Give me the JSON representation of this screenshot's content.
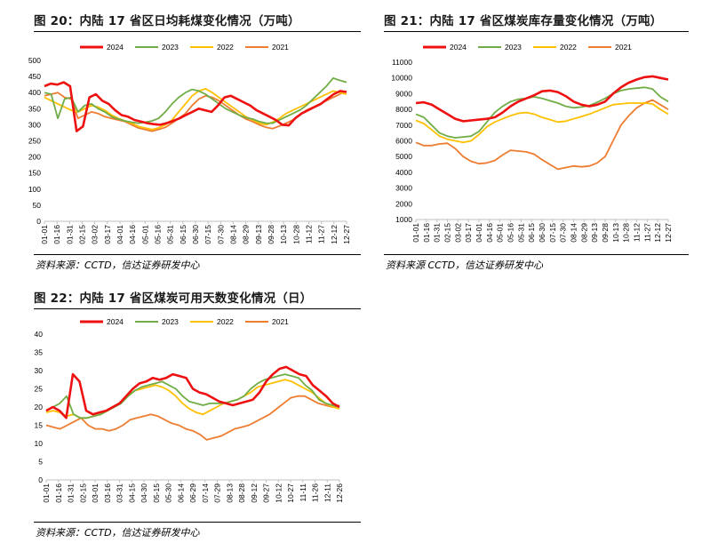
{
  "colors": {
    "2024": "#ee1111",
    "2023": "#70ad47",
    "2022": "#ffc000",
    "2021": "#ed7d31"
  },
  "x_labels_a": [
    "01-01",
    "01-16",
    "01-31",
    "02-15",
    "03-02",
    "03-17",
    "04-01",
    "04-16",
    "05-01",
    "05-16",
    "05-31",
    "06-15",
    "06-30",
    "07-15",
    "07-30",
    "08-14",
    "08-29",
    "09-13",
    "09-28",
    "10-13",
    "10-28",
    "11-12",
    "11-27",
    "12-12",
    "12-27"
  ],
  "x_labels_b": [
    "01-01",
    "01-16",
    "01-31",
    "02-15",
    "03-02",
    "03-17",
    "04-01",
    "04-16",
    "05-01",
    "05-16",
    "05-31",
    "06-15",
    "06-30",
    "07-15",
    "07-30",
    "08-14",
    "08-29",
    "09-13",
    "09-28",
    "10-13",
    "10-28",
    "11-12",
    "11-27",
    "12-12",
    "12-27"
  ],
  "x_labels_c": [
    "01-01",
    "01-16",
    "01-31",
    "02-15",
    "03-01",
    "03-16",
    "03-31",
    "04-15",
    "04-30",
    "05-15",
    "05-30",
    "06-14",
    "06-29",
    "07-14",
    "07-29",
    "08-13",
    "08-28",
    "09-12",
    "09-27",
    "10-12",
    "10-27",
    "11-11",
    "11-26",
    "12-11",
    "12-26"
  ],
  "x_labels_d": [
    "01-01",
    "01-16",
    "01-31",
    "02-15",
    "03-02",
    "03-17",
    "04-01",
    "04-16",
    "05-01",
    "05-16",
    "05-31",
    "06-15",
    "06-30",
    "07-15",
    "07-30",
    "08-14",
    "08-29",
    "09-13",
    "09-28",
    "10-13",
    "10-28",
    "11-12",
    "11-27",
    "12-12",
    "12-27"
  ],
  "charts": [
    {
      "title": "图 20：内陆 17 省区日均耗煤变化情况（万吨）",
      "source": "资料来源：CCTD，信达证券研发中心",
      "chart_data": {
        "type": "line",
        "ylim": [
          0,
          500
        ],
        "yticks": [
          "0",
          "50",
          "100",
          "150",
          "200",
          "250",
          "300",
          "350",
          "400",
          "450",
          "500"
        ],
        "legend": [
          "2024",
          "2023",
          "2022",
          "2021"
        ],
        "series": [
          {
            "name": "2024",
            "values": [
              420,
              428,
              425,
              432,
              420,
              280,
              295,
              385,
              395,
              375,
              365,
              345,
              330,
              325,
              315,
              310,
              305,
              302,
              300,
              305,
              312,
              320,
              330,
              340,
              350,
              345,
              340,
              360,
              385,
              390,
              380,
              370,
              360,
              345,
              335,
              325,
              315,
              300,
              298,
              320,
              335,
              345,
              355,
              365,
              380,
              395,
              405,
              402
            ]
          },
          {
            "name": "2023",
            "values": [
              400,
              395,
              320,
              380,
              385,
              340,
              360,
              365,
              350,
              340,
              325,
              318,
              312,
              308,
              305,
              308,
              312,
              320,
              340,
              365,
              385,
              400,
              410,
              405,
              395,
              380,
              365,
              350,
              340,
              330,
              322,
              318,
              310,
              305,
              305,
              315,
              325,
              335,
              345,
              360,
              380,
              400,
              420,
              445,
              438,
              432
            ]
          },
          {
            "name": "2022",
            "values": [
              385,
              375,
              365,
              355,
              345,
              340,
              350,
              360,
              355,
              345,
              330,
              320,
              312,
              305,
              295,
              290,
              285,
              290,
              300,
              315,
              340,
              365,
              390,
              405,
              412,
              400,
              385,
              370,
              355,
              340,
              325,
              315,
              305,
              300,
              308,
              320,
              335,
              345,
              355,
              365,
              375,
              385,
              395,
              405,
              400,
              395
            ]
          },
          {
            "name": "2021",
            "values": [
              390,
              395,
              400,
              385,
              380,
              320,
              330,
              340,
              335,
              325,
              320,
              315,
              310,
              300,
              290,
              285,
              280,
              285,
              292,
              305,
              320,
              335,
              360,
              380,
              390,
              385,
              375,
              360,
              345,
              330,
              318,
              310,
              300,
              292,
              288,
              296,
              305,
              315,
              330,
              345,
              355,
              365,
              375,
              385,
              395,
              405
            ]
          }
        ]
      }
    },
    {
      "title": "图 21：内陆 17 省区煤炭库存量变化情况（万吨）",
      "source": "资料来源 CCTD，信达证券研发中心",
      "chart_data": {
        "type": "line",
        "ylim": [
          1000,
          11000
        ],
        "yticks": [
          "1000",
          "2000",
          "3000",
          "4000",
          "5000",
          "6000",
          "7000",
          "8000",
          "9000",
          "10000",
          "11000"
        ],
        "legend": [
          "2024",
          "2023",
          "2022",
          "2021"
        ],
        "series": [
          {
            "name": "2024",
            "values": [
              8400,
              8450,
              8300,
              8000,
              7700,
              7400,
              7250,
              7300,
              7350,
              7400,
              7500,
              7800,
              8200,
              8500,
              8700,
              8900,
              9150,
              9200,
              9100,
              8850,
              8500,
              8300,
              8200,
              8300,
              8500,
              9000,
              9400,
              9700,
              9900,
              10050,
              10100,
              10000,
              9900
            ]
          },
          {
            "name": "2023",
            "values": [
              7700,
              7500,
              7000,
              6500,
              6300,
              6200,
              6250,
              6300,
              6600,
              7200,
              7800,
              8200,
              8500,
              8650,
              8700,
              8800,
              8700,
              8550,
              8400,
              8200,
              8100,
              8150,
              8250,
              8450,
              8700,
              9000,
              9200,
              9300,
              9350,
              9400,
              9300,
              8800,
              8500
            ]
          },
          {
            "name": "2022",
            "values": [
              7300,
              7100,
              6700,
              6300,
              6100,
              6000,
              5900,
              6000,
              6400,
              6900,
              7200,
              7400,
              7600,
              7750,
              7800,
              7700,
              7500,
              7350,
              7200,
              7250,
              7400,
              7550,
              7700,
              7900,
              8100,
              8300,
              8350,
              8400,
              8400,
              8400,
              8350,
              8000,
              7700
            ]
          },
          {
            "name": "2021",
            "values": [
              5900,
              5700,
              5700,
              5800,
              5850,
              5500,
              5000,
              4700,
              4550,
              4600,
              4750,
              5100,
              5400,
              5350,
              5300,
              5150,
              4800,
              4500,
              4200,
              4300,
              4400,
              4350,
              4400,
              4600,
              5000,
              6000,
              7000,
              7600,
              8100,
              8400,
              8600,
              8300,
              8000
            ]
          }
        ]
      }
    },
    {
      "title": "图 22：内陆 17 省区煤炭可用天数变化情况（日）",
      "source": "资料来源：CCTD，信达证券研发中心",
      "chart_data": {
        "type": "line",
        "ylim": [
          0,
          40
        ],
        "yticks": [
          "0",
          "5",
          "10",
          "15",
          "20",
          "25",
          "30",
          "35",
          "40"
        ],
        "legend": [
          "2024",
          "2023",
          "2022",
          "2021"
        ],
        "series": [
          {
            "name": "2024",
            "values": [
              19,
              20,
              19,
              17,
              29,
              27,
              19,
              18,
              18.5,
              19,
              20,
              21,
              23,
              25,
              26.5,
              27,
              28,
              27.5,
              28,
              29,
              28.5,
              28,
              25,
              24,
              23.5,
              22.5,
              21.5,
              21,
              20.5,
              21,
              21.5,
              22,
              24,
              27,
              29,
              30.5,
              31,
              30,
              29,
              28.5,
              26,
              24.5,
              23,
              21,
              20
            ]
          },
          {
            "name": "2023",
            "values": [
              19,
              20,
              21,
              23,
              18,
              17,
              17,
              17.5,
              18,
              19,
              20,
              21,
              23,
              24.5,
              25.5,
              26,
              26.5,
              27,
              26,
              25,
              23,
              21.5,
              21,
              20.5,
              21,
              21,
              21,
              21.5,
              22,
              23,
              25,
              26.5,
              27.5,
              28,
              28.5,
              29,
              28.5,
              28,
              26,
              24.5,
              22,
              21,
              20.5,
              20
            ]
          },
          {
            "name": "2022",
            "values": [
              18.5,
              19,
              18.5,
              17.5,
              18,
              17,
              17,
              17.5,
              18,
              19,
              20,
              21.5,
              23,
              24.5,
              25,
              25.5,
              26,
              25.5,
              24.5,
              23,
              21,
              19.5,
              18.5,
              18,
              19,
              20,
              21,
              21.5,
              22,
              23,
              24,
              25.5,
              26,
              26.5,
              27,
              27.5,
              27,
              26,
              25,
              24,
              22.5,
              21,
              20,
              19.5
            ]
          },
          {
            "name": "2021",
            "values": [
              15,
              14.5,
              14,
              15,
              16,
              17,
              15,
              14,
              14,
              13.5,
              14,
              15,
              16.5,
              17,
              17.5,
              18,
              17.5,
              16.5,
              15.5,
              15,
              14,
              13.5,
              12.5,
              11,
              11.5,
              12,
              13,
              14,
              14.5,
              15,
              16,
              17,
              18,
              19.5,
              21,
              22.5,
              23,
              23,
              22,
              21,
              20.5,
              20,
              20.5
            ]
          }
        ]
      }
    }
  ]
}
